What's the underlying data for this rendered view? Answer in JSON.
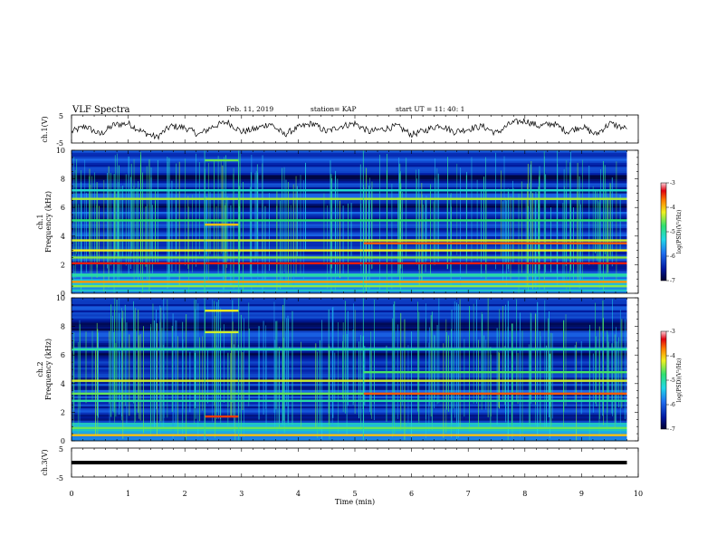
{
  "header": {
    "title": "VLF Spectra",
    "date": "Feb. 11, 2019",
    "station": "station= KAP",
    "start_time": "start  UT =   11: 40: 1"
  },
  "colors": {
    "background_black": "#000000",
    "deep_blue": "#0a1a8c",
    "blue": "#1f4fd6",
    "cyan": "#20d8e8",
    "green": "#30e070",
    "yellow": "#f0f020",
    "orange": "#ff8000",
    "red": "#e00010"
  },
  "chart_data": [
    {
      "type": "line",
      "name": "ch1-waveform",
      "ylabel": "ch.1(V)",
      "ylim": [
        -5,
        5
      ],
      "yticks": [
        "5",
        "-5"
      ],
      "xlim": [
        0,
        10
      ],
      "x": [
        0,
        0.25,
        0.5,
        0.75,
        1.0,
        1.25,
        1.5,
        1.75,
        2.0,
        2.25,
        2.5,
        2.75,
        3.0,
        3.25,
        3.5,
        3.75,
        4.0,
        4.25,
        4.5,
        4.75,
        5.0,
        5.25,
        5.5,
        5.75,
        6.0,
        6.25,
        6.5,
        6.75,
        7.0,
        7.25,
        7.5,
        7.75,
        8.0,
        8.25,
        8.5,
        8.75,
        9.0,
        9.25,
        9.5,
        9.8
      ],
      "y": [
        -1,
        1,
        -2,
        1.5,
        2,
        -1,
        -3,
        1,
        0.5,
        -2,
        1,
        2.5,
        -1,
        0,
        2,
        -2,
        0.5,
        2,
        -1,
        1,
        2,
        -1,
        0,
        1,
        -2,
        -0.5,
        1.5,
        -1,
        0,
        1,
        -1.5,
        2,
        3,
        1,
        2,
        -1,
        1,
        -2,
        2,
        0
      ]
    },
    {
      "type": "heatmap",
      "name": "ch1-spectrogram",
      "ylabel": "ch.1\nFrequency  (kHz)",
      "xlim": [
        0,
        10
      ],
      "ylim": [
        0,
        10
      ],
      "yticks": [
        "0",
        "2",
        "4",
        "6",
        "8",
        "10"
      ],
      "zlim": [
        -7,
        -3
      ],
      "colorbar_label": "log(PSD)(V²/Hz)",
      "colorbar_ticks": [
        "-3",
        "-4",
        "-5",
        "-6",
        "-7"
      ],
      "x_segments": [
        0,
        2.35,
        2.95,
        5.15,
        9.8
      ],
      "lines_khz": [
        {
          "f": 0.5,
          "level": -4.5,
          "x": [
            0,
            9.8
          ]
        },
        {
          "f": 0.8,
          "level": -3.8,
          "x": [
            0,
            9.8
          ]
        },
        {
          "f": 1.3,
          "level": -5.0,
          "x": [
            0,
            9.8
          ]
        },
        {
          "f": 2.1,
          "level": -3.4,
          "x": [
            0,
            9.8
          ]
        },
        {
          "f": 2.5,
          "level": -4.5,
          "x": [
            0,
            9.8
          ]
        },
        {
          "f": 3.0,
          "level": -4.2,
          "x": [
            0,
            9.8
          ]
        },
        {
          "f": 3.5,
          "level": -3.6,
          "x": [
            5.15,
            9.8
          ]
        },
        {
          "f": 3.7,
          "level": -4.3,
          "x": [
            0,
            9.8
          ]
        },
        {
          "f": 5.1,
          "level": -4.8,
          "x": [
            0,
            9.8
          ]
        },
        {
          "f": 6.6,
          "level": -4.4,
          "x": [
            0,
            9.8
          ]
        },
        {
          "f": 7.2,
          "level": -5.2,
          "x": [
            0,
            9.8
          ]
        },
        {
          "f": 9.3,
          "level": -4.6,
          "x": [
            2.35,
            2.95
          ]
        },
        {
          "f": 4.8,
          "level": -4.0,
          "x": [
            2.35,
            2.95
          ]
        }
      ]
    },
    {
      "type": "heatmap",
      "name": "ch2-spectrogram",
      "ylabel": "ch.2\nFrequency  (kHz)",
      "xlim": [
        0,
        10
      ],
      "ylim": [
        0,
        10
      ],
      "yticks": [
        "0",
        "2",
        "4",
        "6",
        "8",
        "10"
      ],
      "zlim": [
        -7,
        -3
      ],
      "colorbar_label": "log(PSD)(V²/Hz)",
      "colorbar_ticks": [
        "-3",
        "-4",
        "-5",
        "-6",
        "-7"
      ],
      "x_segments": [
        0,
        2.35,
        2.95,
        5.15,
        9.8
      ],
      "lines_khz": [
        {
          "f": 0.4,
          "level": -4.0,
          "x": [
            0,
            9.8
          ]
        },
        {
          "f": 0.9,
          "level": -4.6,
          "x": [
            0,
            9.8
          ]
        },
        {
          "f": 1.7,
          "level": -3.5,
          "x": [
            2.35,
            2.95
          ]
        },
        {
          "f": 2.8,
          "level": -5.0,
          "x": [
            0,
            9.8
          ]
        },
        {
          "f": 3.3,
          "level": -4.6,
          "x": [
            0,
            5.15
          ]
        },
        {
          "f": 3.3,
          "level": -3.6,
          "x": [
            5.15,
            9.8
          ]
        },
        {
          "f": 4.2,
          "level": -4.3,
          "x": [
            0,
            9.8
          ]
        },
        {
          "f": 4.8,
          "level": -4.7,
          "x": [
            5.15,
            9.8
          ]
        },
        {
          "f": 6.4,
          "level": -5.0,
          "x": [
            0,
            9.8
          ]
        },
        {
          "f": 7.6,
          "level": -4.3,
          "x": [
            2.35,
            2.95
          ]
        },
        {
          "f": 9.1,
          "level": -4.2,
          "x": [
            2.35,
            2.95
          ]
        }
      ]
    },
    {
      "type": "line",
      "name": "ch3-waveform",
      "ylabel": "ch.3(V)",
      "ylim": [
        -5,
        5
      ],
      "yticks": [
        "5",
        "-5"
      ],
      "xlim": [
        0,
        10
      ],
      "x": [
        0,
        9.8
      ],
      "y": [
        0,
        0
      ]
    }
  ],
  "x_axis": {
    "xlabel": "Time  (min)",
    "ticks": [
      "0",
      "1",
      "2",
      "3",
      "4",
      "5",
      "6",
      "7",
      "8",
      "9",
      "10"
    ]
  }
}
